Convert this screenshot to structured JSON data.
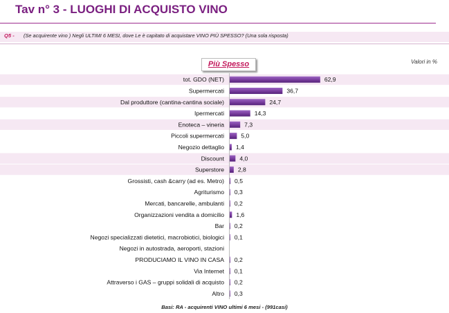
{
  "header": {
    "title": "Tav n° 3 - LUOGHI DI ACQUISTO VINO",
    "question_id": "Q5 -",
    "question_text": "(Se acquirente vino ) Negli ULTIMI 6 MESI, dove Le è capitato di acquistare VINO PIÙ SPESSO? (Una sola risposta)"
  },
  "column_header": "Più Spesso",
  "units_note": "Valori in %",
  "footnote": "Basi:  RA - acquirenti  VINO ultimi 6 mesi - (991casi)",
  "colors": {
    "title": "#7a1f80",
    "accent": "#c2185b",
    "bar": "#7b3fa0",
    "band": "#f6e8f3"
  },
  "chart_data": {
    "type": "bar",
    "orientation": "horizontal",
    "title": "Più Spesso",
    "xlabel": "",
    "ylabel": "",
    "xlim": [
      0,
      100
    ],
    "grid": false,
    "categories": [
      "tot.  GDO (NET)",
      "Supermercati",
      "Dal produttore (cantina-cantina sociale)",
      "Ipermercati",
      "Enoteca – vineria",
      "Piccoli supermercati",
      "Negozio dettaglio",
      "Discount",
      "Superstore",
      "Grossisti, cash &carry (ad es. Metro)",
      "Agriturismo",
      "Mercati, bancarelle, ambulanti",
      "Organizzazioni vendita a domicilio",
      "Bar",
      "Negozi specializzati dietetici, macrobiotici, biologici",
      "Negozi in autostrada, aeroporti, stazioni",
      "PRODUCIAMO IL VINO IN CASA",
      "Via Internet",
      "Attraverso i GAS – gruppi solidali di acquisto",
      "Altro"
    ],
    "values": [
      62.9,
      36.7,
      24.7,
      14.3,
      7.3,
      5.0,
      1.4,
      4.0,
      2.8,
      0.5,
      0.3,
      0.2,
      1.6,
      0.2,
      0.1,
      null,
      0.2,
      0.1,
      0.2,
      0.3
    ],
    "value_labels": [
      "62,9",
      "36,7",
      "24,7",
      "14,3",
      "7,3",
      "5,0",
      "1,4",
      "4,0",
      "2,8",
      "0,5",
      "0,3",
      "0,2",
      "1,6",
      "0,2",
      "0,1",
      "",
      "0,2",
      "0,1",
      "0,2",
      "0,3"
    ],
    "highlighted_rows": [
      0,
      2,
      4,
      7,
      8
    ]
  }
}
